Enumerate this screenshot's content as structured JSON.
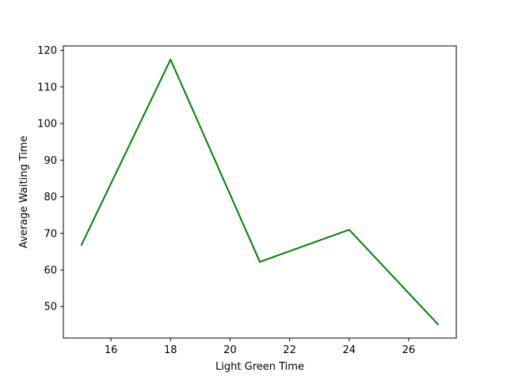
{
  "chart_data": {
    "type": "line",
    "title": "",
    "xlabel": "Light Green Time",
    "ylabel": "Average Waiting Time",
    "xlim": [
      14.4,
      27.6
    ],
    "ylim": [
      41.4,
      121.2
    ],
    "xticks": [
      16,
      18,
      20,
      22,
      24,
      26
    ],
    "yticks": [
      50,
      60,
      70,
      80,
      90,
      100,
      110,
      120
    ],
    "grid": false,
    "legend": "none",
    "series": [
      {
        "color": "#008000",
        "x": [
          15,
          18,
          21,
          24,
          27
        ],
        "y": [
          66.7,
          117.5,
          62.2,
          71.0,
          45.0
        ]
      }
    ]
  }
}
